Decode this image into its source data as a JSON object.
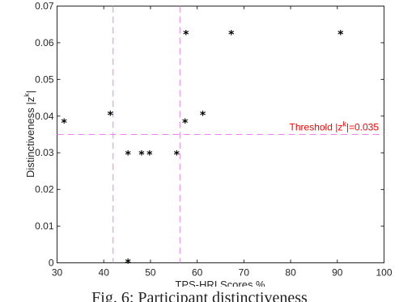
{
  "chart_data": {
    "type": "scatter",
    "xlabel": "TPS-HRI Scores %",
    "ylabel": "Distinctiveness |z",
    "ylabel_sup": "k",
    "ylabel_end": "|",
    "xlim": [
      30,
      100
    ],
    "ylim": [
      0,
      0.07
    ],
    "xticks": [
      "30",
      "40",
      "50",
      "60",
      "70",
      "80",
      "90",
      "100"
    ],
    "yticks": [
      "0",
      "0.01",
      "0.02",
      "0.03",
      "0.04",
      "0.05",
      "0.06",
      "0.07"
    ],
    "grid": false,
    "marker": "*",
    "marker_color": "#000000",
    "points": [
      {
        "x": 31.5,
        "y": 0.0382
      },
      {
        "x": 41.4,
        "y": 0.0403
      },
      {
        "x": 45.2,
        "y": 0.0
      },
      {
        "x": 45.2,
        "y": 0.0295
      },
      {
        "x": 48.1,
        "y": 0.0295
      },
      {
        "x": 49.8,
        "y": 0.0295
      },
      {
        "x": 55.6,
        "y": 0.0295
      },
      {
        "x": 57.4,
        "y": 0.0382
      },
      {
        "x": 57.6,
        "y": 0.0623
      },
      {
        "x": 61.2,
        "y": 0.0403
      },
      {
        "x": 67.3,
        "y": 0.0623
      },
      {
        "x": 90.7,
        "y": 0.0623
      }
    ],
    "vlines": [
      42.0,
      56.3
    ],
    "vline_color": "#ee82ee",
    "threshold": {
      "y": 0.035,
      "color": "#ff0000",
      "label_pre": "Threshold |z",
      "label_sup": "k",
      "label_post": "|=0.035"
    }
  },
  "caption": "Fig. 6: Participant distinctiveness"
}
